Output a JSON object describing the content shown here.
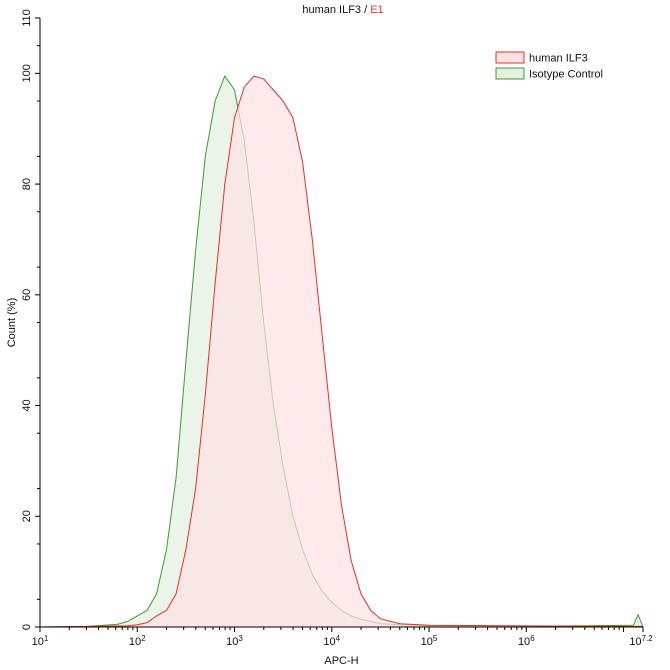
{
  "title": {
    "main": "human ILF3",
    "separator": " / ",
    "gate": "E1",
    "gate_color": "#e8362a"
  },
  "chart_data": {
    "type": "area",
    "title": "human ILF3 / E1",
    "xlabel": "APC-H",
    "ylabel": "Count (%)",
    "xscale": "log",
    "xlim": [
      10,
      15848932
    ],
    "ylim": [
      0,
      110
    ],
    "x_ticks": [
      {
        "base": "10",
        "exp": "1"
      },
      {
        "base": "10",
        "exp": "2"
      },
      {
        "base": "10",
        "exp": "3"
      },
      {
        "base": "10",
        "exp": "4"
      },
      {
        "base": "10",
        "exp": "5"
      },
      {
        "base": "10",
        "exp": "6"
      },
      {
        "base": "10",
        "exp": "7.2"
      }
    ],
    "y_ticks": [
      "0",
      "20",
      "40",
      "60",
      "80",
      "100",
      "110"
    ],
    "grid": false,
    "legend_position": "top-right",
    "series": [
      {
        "name": "human ILF3",
        "stroke": "#e8302a",
        "fill": "#fde1e3",
        "points": [
          [
            10,
            0
          ],
          [
            79,
            0.2
          ],
          [
            100,
            0.4
          ],
          [
            126,
            0.8
          ],
          [
            158,
            2
          ],
          [
            200,
            3
          ],
          [
            251,
            6
          ],
          [
            316,
            14
          ],
          [
            398,
            25
          ],
          [
            501,
            42
          ],
          [
            631,
            62
          ],
          [
            794,
            80
          ],
          [
            1000,
            92
          ],
          [
            1259,
            97.5
          ],
          [
            1585,
            99.5
          ],
          [
            1995,
            99
          ],
          [
            2512,
            97
          ],
          [
            3162,
            95
          ],
          [
            3981,
            92
          ],
          [
            5012,
            84
          ],
          [
            6310,
            70
          ],
          [
            7943,
            53
          ],
          [
            10000,
            36
          ],
          [
            12589,
            22
          ],
          [
            15849,
            12
          ],
          [
            19953,
            6
          ],
          [
            25119,
            3
          ],
          [
            31623,
            1.5
          ],
          [
            50119,
            0.6
          ],
          [
            100000,
            0.3
          ],
          [
            1000000,
            0.2
          ],
          [
            15848932,
            0.1
          ]
        ]
      },
      {
        "name": "Isotype Control",
        "stroke": "#3d9b35",
        "fill": "#e3f0de",
        "points": [
          [
            10,
            0
          ],
          [
            31,
            0.1
          ],
          [
            63,
            0.5
          ],
          [
            79,
            1
          ],
          [
            100,
            2
          ],
          [
            126,
            3
          ],
          [
            158,
            6
          ],
          [
            200,
            14
          ],
          [
            251,
            27
          ],
          [
            316,
            48
          ],
          [
            398,
            68
          ],
          [
            501,
            85
          ],
          [
            631,
            95
          ],
          [
            794,
            99.5
          ],
          [
            1000,
            97
          ],
          [
            1259,
            88
          ],
          [
            1585,
            73
          ],
          [
            1995,
            55
          ],
          [
            2512,
            40
          ],
          [
            3162,
            29
          ],
          [
            3981,
            20
          ],
          [
            5012,
            14
          ],
          [
            6310,
            9.5
          ],
          [
            7943,
            6.5
          ],
          [
            10000,
            4.5
          ],
          [
            12589,
            3
          ],
          [
            15849,
            2
          ],
          [
            19953,
            1.4
          ],
          [
            31623,
            0.6
          ],
          [
            100000,
            0.2
          ],
          [
            1000000,
            0.1
          ],
          [
            12589254,
            0.3
          ],
          [
            14125375,
            2.2
          ],
          [
            15848932,
            0
          ]
        ]
      }
    ]
  }
}
